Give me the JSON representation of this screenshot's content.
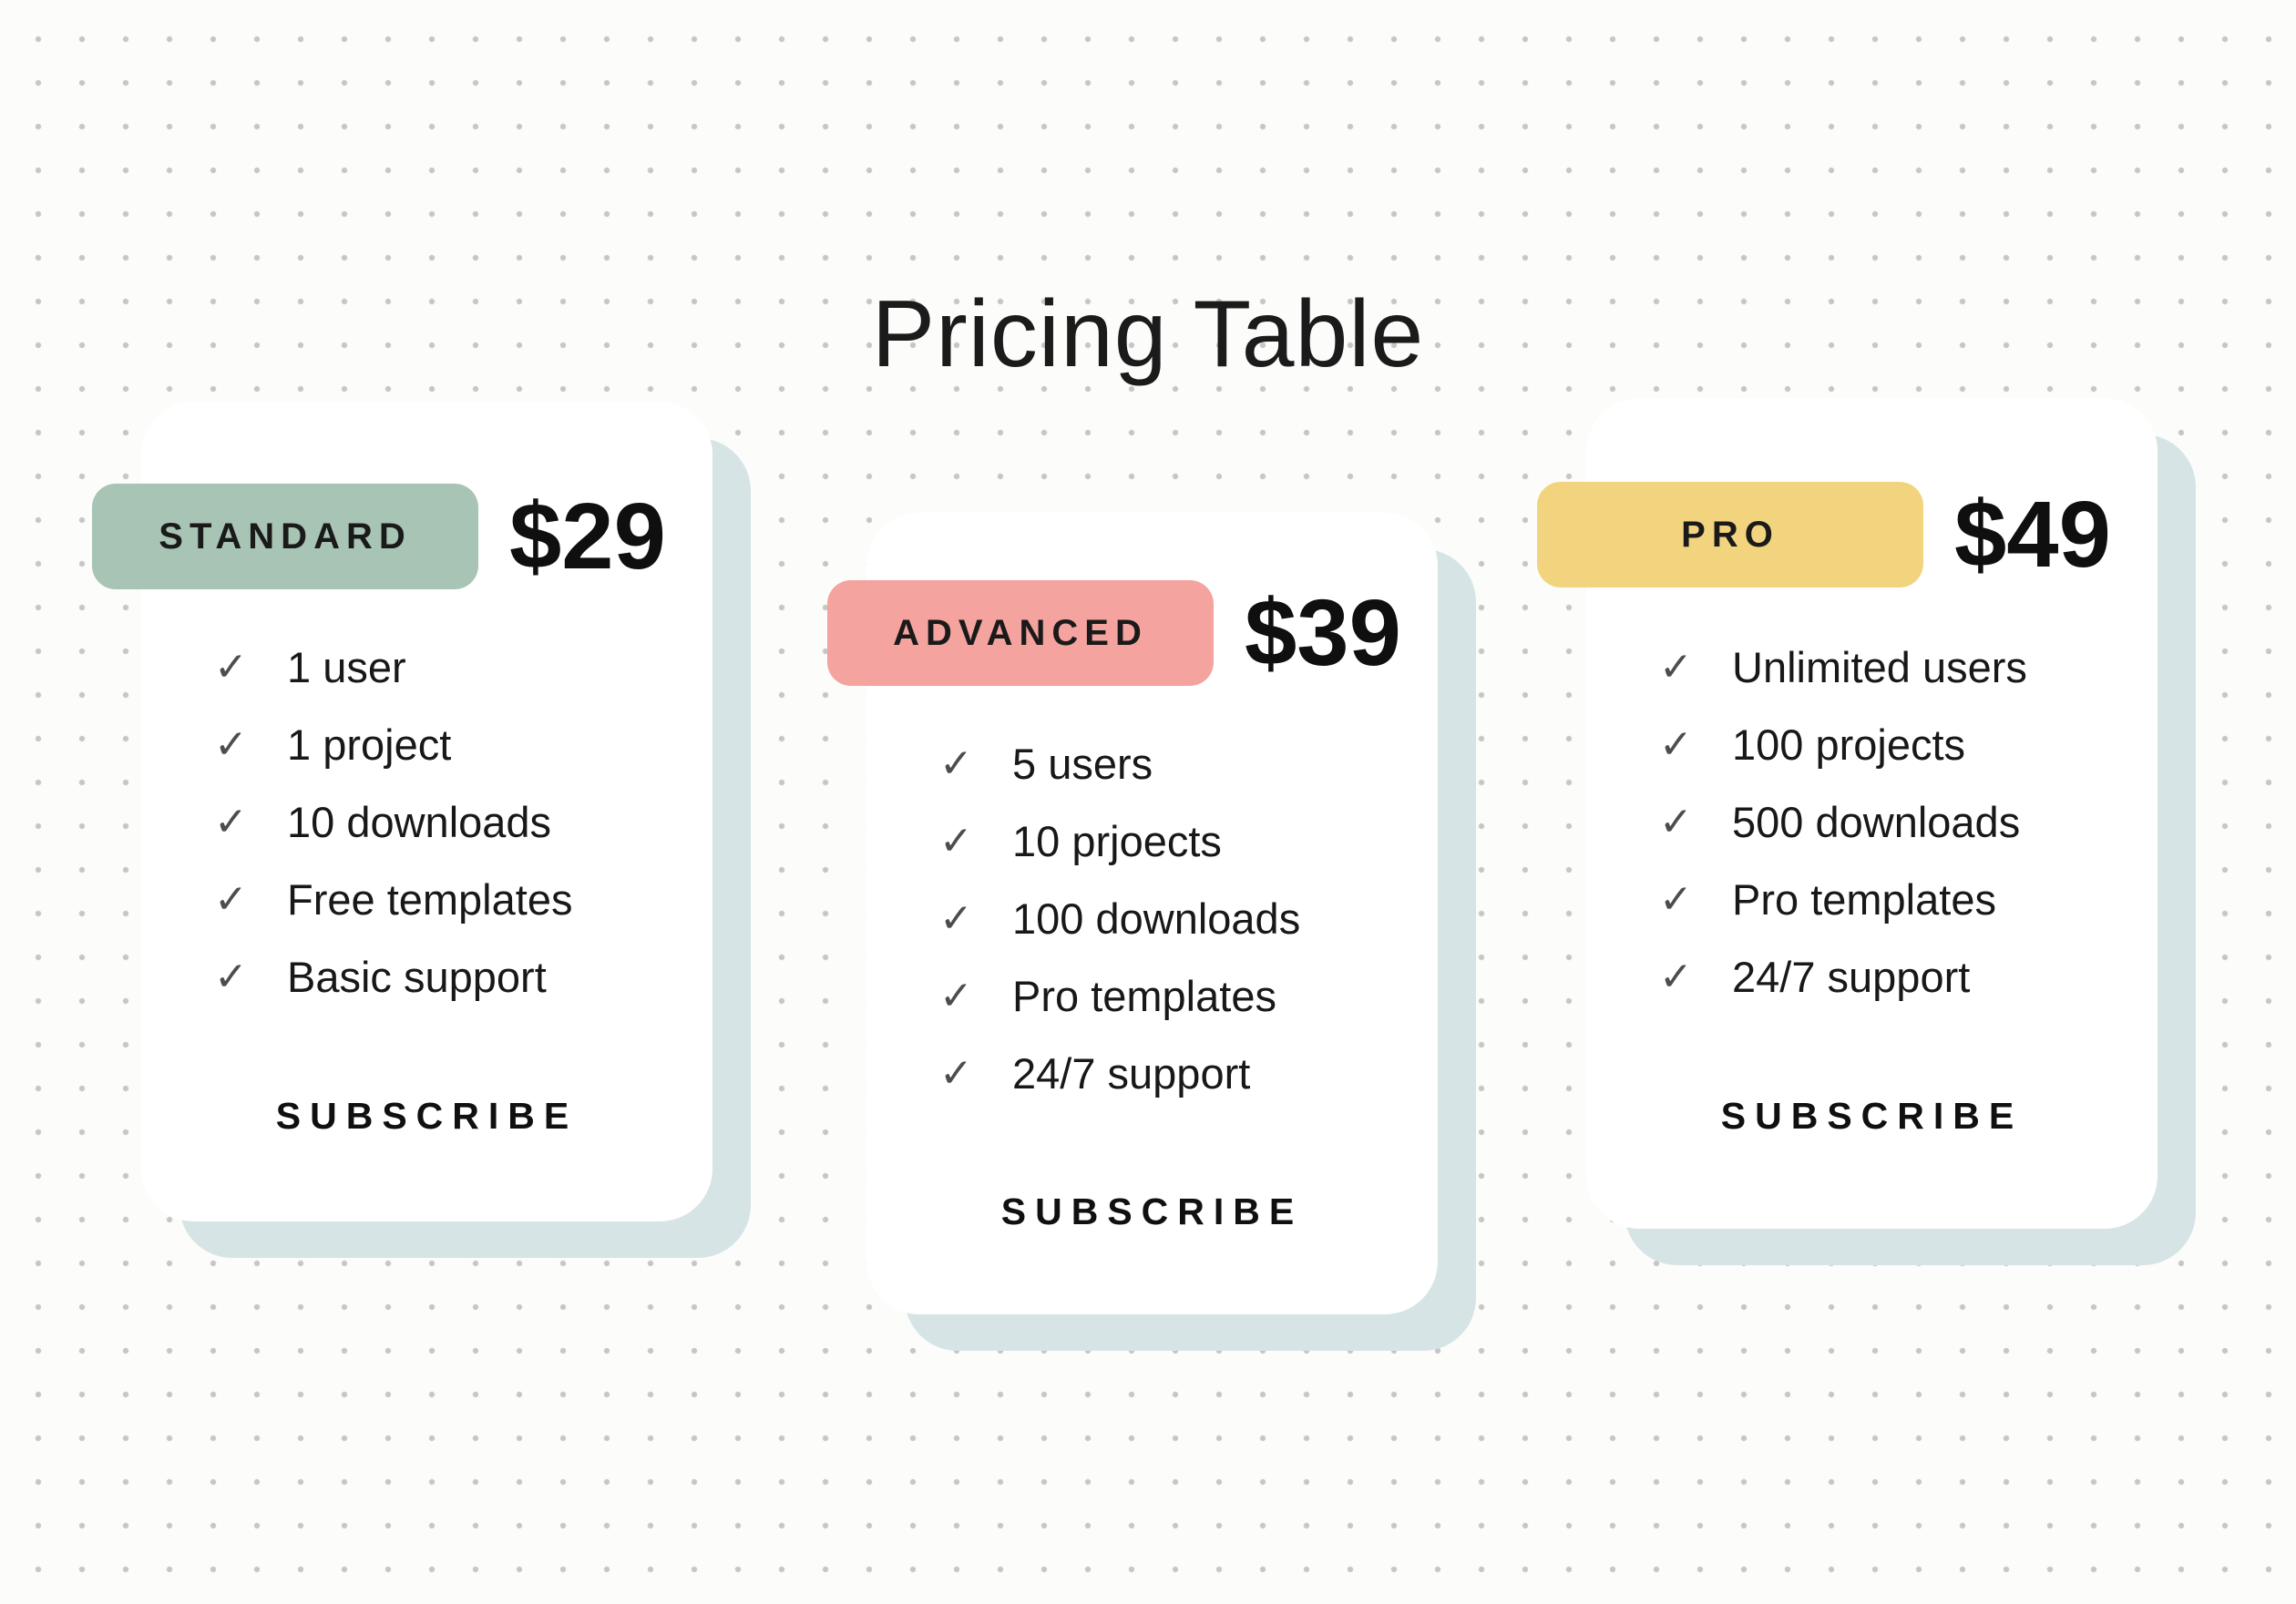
{
  "page": {
    "title": "Pricing Table"
  },
  "colors": {
    "background": "#fcfcfa",
    "dot_grid": "#c6c6c6",
    "card_shadow": "#d6e4e5",
    "card_background": "#ffffff",
    "standard_badge": "#a8c4b4",
    "advanced_badge": "#f4a39e",
    "pro_badge": "#f3d47e",
    "text": "#161616",
    "check": "#4d4d4d"
  },
  "icons": {
    "check": "✓"
  },
  "cards": [
    {
      "id": "standard",
      "badge": "STANDARD",
      "badge_color": "#a8c4b4",
      "price": "$29",
      "features": [
        "1 user",
        "1 project",
        "10 downloads",
        "Free templates",
        "Basic support"
      ],
      "subscribe_label": "SUBSCRIBE"
    },
    {
      "id": "advanced",
      "badge": "ADVANCED",
      "badge_color": "#f4a39e",
      "price": "$39",
      "features": [
        "5 users",
        "10 prjoects",
        "100 downloads",
        "Pro templates",
        "24/7 support"
      ],
      "subscribe_label": "SUBSCRIBE"
    },
    {
      "id": "pro",
      "badge": "PRO",
      "badge_color": "#f3d47e",
      "price": "$49",
      "features": [
        "Unlimited users",
        "100 projects",
        "500 downloads",
        "Pro templates",
        "24/7 support"
      ],
      "subscribe_label": "SUBSCRIBE"
    }
  ]
}
